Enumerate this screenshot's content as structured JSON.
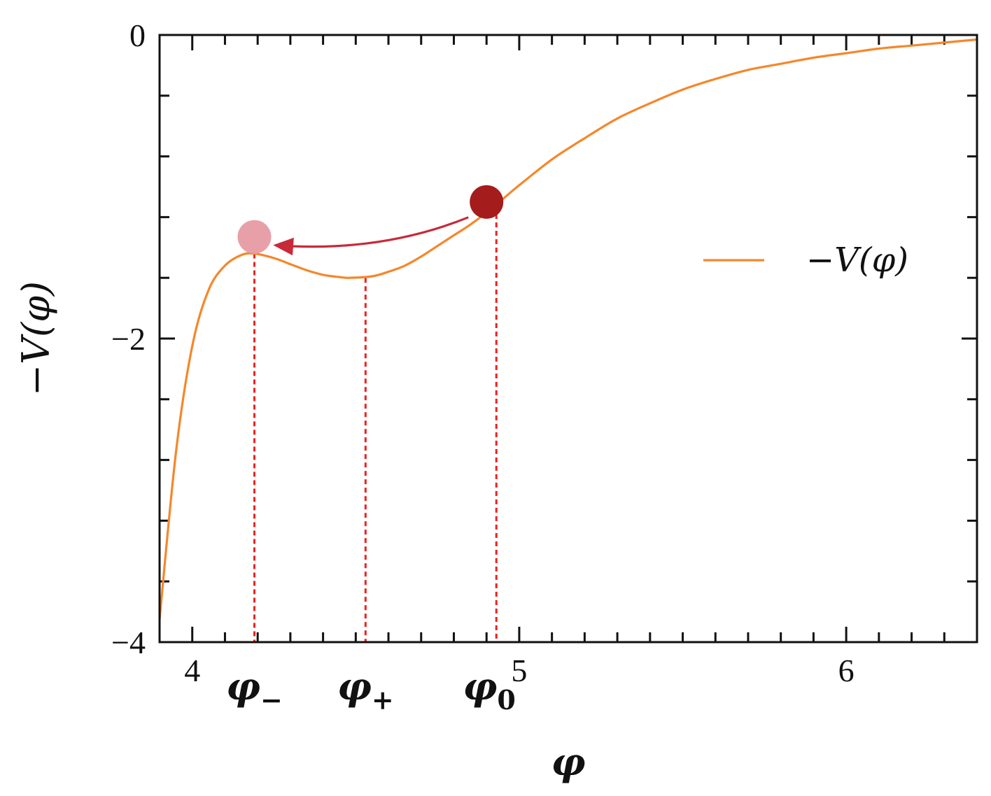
{
  "chart_data": {
    "type": "line",
    "xlabel": "φ",
    "ylabel": "−V(φ)",
    "xlim": [
      3.9,
      6.4
    ],
    "ylim": [
      -4,
      0
    ],
    "x_ticks": [
      {
        "value": 4,
        "label": "4"
      },
      {
        "value": 5,
        "label": "5"
      },
      {
        "value": 6,
        "label": "6"
      }
    ],
    "y_ticks": [
      {
        "value": 0,
        "label": "0"
      },
      {
        "value": -2,
        "label": "−2"
      },
      {
        "value": -4,
        "label": "−4"
      }
    ],
    "series": [
      {
        "name": "−V(φ)",
        "color": "#f5872b",
        "x": [
          3.9,
          3.95,
          4.0,
          4.05,
          4.1,
          4.15,
          4.19,
          4.25,
          4.3,
          4.35,
          4.4,
          4.45,
          4.48,
          4.55,
          4.6,
          4.65,
          4.7,
          4.75,
          4.8,
          4.85,
          4.9,
          4.95,
          5.0,
          5.1,
          5.2,
          5.3,
          5.4,
          5.5,
          5.6,
          5.7,
          5.8,
          5.9,
          6.0,
          6.1,
          6.2,
          6.3,
          6.4
        ],
        "y": [
          -3.85,
          -2.75,
          -2.05,
          -1.68,
          -1.52,
          -1.45,
          -1.44,
          -1.47,
          -1.51,
          -1.55,
          -1.58,
          -1.595,
          -1.6,
          -1.59,
          -1.56,
          -1.52,
          -1.46,
          -1.39,
          -1.32,
          -1.25,
          -1.17,
          -1.08,
          -0.99,
          -0.82,
          -0.68,
          -0.55,
          -0.45,
          -0.36,
          -0.29,
          -0.23,
          -0.19,
          -0.15,
          -0.12,
          -0.09,
          -0.07,
          -0.05,
          -0.03
        ]
      }
    ],
    "markers": [
      {
        "label": "φ−",
        "x": 4.19,
        "y": -1.44
      },
      {
        "label": "φ+",
        "x": 4.53,
        "y": -1.6
      },
      {
        "label": "φ0",
        "x": 4.93,
        "y": -1.18
      }
    ],
    "balls": [
      {
        "x": 4.19,
        "y": -1.33,
        "color": "#e8a0a8"
      },
      {
        "x": 4.9,
        "y": -1.1,
        "color": "#a51c1c"
      }
    ],
    "arrow_color": "#c82a3a",
    "marker_line_color": "#f02020",
    "legend_position": "right"
  }
}
